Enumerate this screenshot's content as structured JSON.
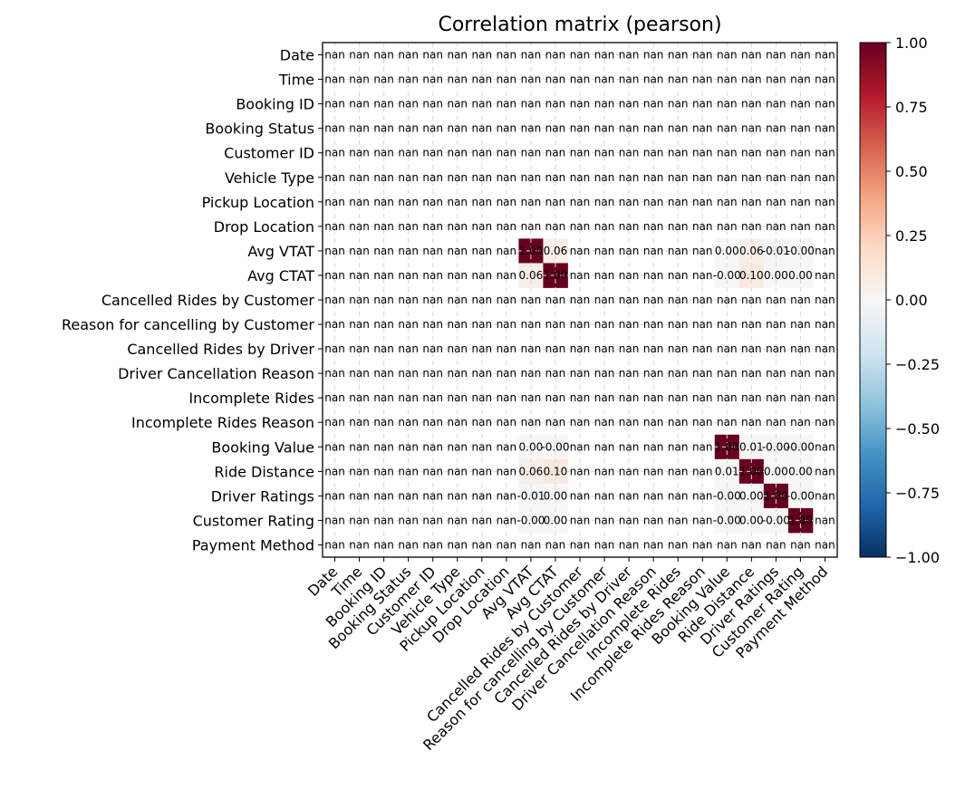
{
  "chart_data": {
    "type": "heatmap",
    "title": "Correlation matrix (pearson)",
    "rows": [
      "Date",
      "Time",
      "Booking ID",
      "Booking Status",
      "Customer ID",
      "Vehicle Type",
      "Pickup Location",
      "Drop Location",
      "Avg VTAT",
      "Avg CTAT",
      "Cancelled Rides by Customer",
      "Reason for cancelling by Customer",
      "Cancelled Rides by Driver",
      "Driver Cancellation Reason",
      "Incomplete Rides",
      "Incomplete Rides Reason",
      "Booking Value",
      "Ride Distance",
      "Driver Ratings",
      "Customer Rating",
      "Payment Method"
    ],
    "columns": [
      "Date",
      "Time",
      "Booking ID",
      "Booking Status",
      "Customer ID",
      "Vehicle Type",
      "Pickup Location",
      "Drop Location",
      "Avg VTAT",
      "Avg CTAT",
      "Cancelled Rides by Customer",
      "Reason for cancelling by Customer",
      "Cancelled Rides by Driver",
      "Driver Cancellation Reason",
      "Incomplete Rides",
      "Incomplete Rides Reason",
      "Booking Value",
      "Ride Distance",
      "Driver Ratings",
      "Customer Rating",
      "Payment Method"
    ],
    "missing_label": "nan",
    "known_cells": [
      {
        "row": "Avg VTAT",
        "col": "Avg VTAT",
        "value": 1.0
      },
      {
        "row": "Avg VTAT",
        "col": "Avg CTAT",
        "value": 0.06
      },
      {
        "row": "Avg VTAT",
        "col": "Booking Value",
        "value": 0.0
      },
      {
        "row": "Avg VTAT",
        "col": "Ride Distance",
        "value": 0.06
      },
      {
        "row": "Avg VTAT",
        "col": "Driver Ratings",
        "value": -0.01
      },
      {
        "row": "Avg VTAT",
        "col": "Customer Rating",
        "value": -0.0
      },
      {
        "row": "Avg CTAT",
        "col": "Avg VTAT",
        "value": 0.06
      },
      {
        "row": "Avg CTAT",
        "col": "Avg CTAT",
        "value": 1.0
      },
      {
        "row": "Avg CTAT",
        "col": "Booking Value",
        "value": -0.0
      },
      {
        "row": "Avg CTAT",
        "col": "Ride Distance",
        "value": 0.1
      },
      {
        "row": "Avg CTAT",
        "col": "Driver Ratings",
        "value": 0.0
      },
      {
        "row": "Avg CTAT",
        "col": "Customer Rating",
        "value": 0.0
      },
      {
        "row": "Booking Value",
        "col": "Avg VTAT",
        "value": 0.0
      },
      {
        "row": "Booking Value",
        "col": "Avg CTAT",
        "value": -0.0
      },
      {
        "row": "Booking Value",
        "col": "Booking Value",
        "value": 1.0
      },
      {
        "row": "Booking Value",
        "col": "Ride Distance",
        "value": 0.01
      },
      {
        "row": "Booking Value",
        "col": "Driver Ratings",
        "value": -0.0
      },
      {
        "row": "Booking Value",
        "col": "Customer Rating",
        "value": -0.0
      },
      {
        "row": "Ride Distance",
        "col": "Avg VTAT",
        "value": 0.06
      },
      {
        "row": "Ride Distance",
        "col": "Avg CTAT",
        "value": 0.1
      },
      {
        "row": "Ride Distance",
        "col": "Booking Value",
        "value": 0.01
      },
      {
        "row": "Ride Distance",
        "col": "Ride Distance",
        "value": 1.0
      },
      {
        "row": "Ride Distance",
        "col": "Driver Ratings",
        "value": 0.0
      },
      {
        "row": "Ride Distance",
        "col": "Customer Rating",
        "value": 0.0
      },
      {
        "row": "Driver Ratings",
        "col": "Avg VTAT",
        "value": -0.01
      },
      {
        "row": "Driver Ratings",
        "col": "Avg CTAT",
        "value": 0.0
      },
      {
        "row": "Driver Ratings",
        "col": "Booking Value",
        "value": -0.0
      },
      {
        "row": "Driver Ratings",
        "col": "Ride Distance",
        "value": 0.0
      },
      {
        "row": "Driver Ratings",
        "col": "Driver Ratings",
        "value": 1.0
      },
      {
        "row": "Driver Ratings",
        "col": "Customer Rating",
        "value": -0.0
      },
      {
        "row": "Customer Rating",
        "col": "Avg VTAT",
        "value": -0.0
      },
      {
        "row": "Customer Rating",
        "col": "Avg CTAT",
        "value": 0.0
      },
      {
        "row": "Customer Rating",
        "col": "Booking Value",
        "value": -0.0
      },
      {
        "row": "Customer Rating",
        "col": "Ride Distance",
        "value": 0.0
      },
      {
        "row": "Customer Rating",
        "col": "Driver Ratings",
        "value": -0.0
      },
      {
        "row": "Customer Rating",
        "col": "Customer Rating",
        "value": 1.0
      }
    ],
    "value_format_decimals": 2,
    "colormap": "RdBu_r",
    "colorbar": {
      "range": [
        -1.0,
        1.0
      ],
      "ticks": [
        1.0,
        0.75,
        0.5,
        0.25,
        0.0,
        -0.25,
        -0.5,
        -0.75,
        -1.0
      ],
      "tick_labels": [
        "1.00",
        "0.75",
        "0.50",
        "0.25",
        "0.00",
        "−0.25",
        "−0.50",
        "−0.75",
        "−1.00"
      ]
    },
    "grid": true,
    "legend": "colorbar-right"
  }
}
